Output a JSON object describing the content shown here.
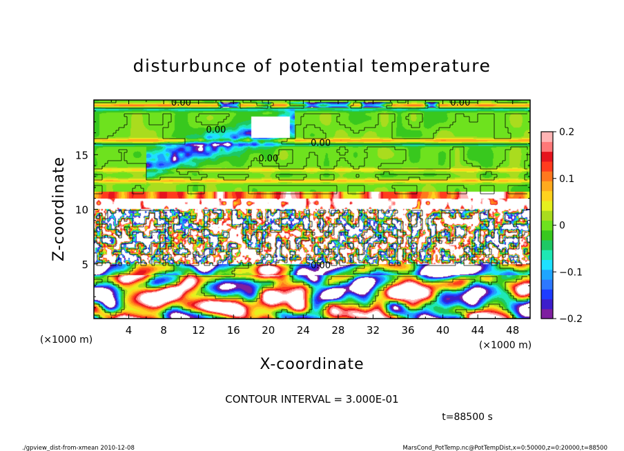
{
  "chart_data": {
    "type": "heatmap",
    "title": "disturbunce of potential temperature",
    "xlabel": "X-coordinate",
    "ylabel": "Z-coordinate",
    "x_units": "(×1000 m)",
    "y_units": "(×1000 m)",
    "xlim": [
      0,
      50
    ],
    "ylim": [
      0,
      20
    ],
    "x_ticks": [
      4,
      8,
      12,
      16,
      20,
      24,
      28,
      32,
      36,
      40,
      44,
      48
    ],
    "y_ticks": [
      5,
      10,
      15
    ],
    "colorbar": {
      "range": [
        -0.2,
        0.2
      ],
      "ticks": [
        "0.2",
        "0.1",
        "0",
        "−0.1",
        "−0.2"
      ],
      "tick_values": [
        0.2,
        0.1,
        0,
        -0.1,
        -0.2
      ],
      "colors": [
        "#7f1fa0",
        "#3c1ecc",
        "#1e3cff",
        "#2d78ff",
        "#1ea5ff",
        "#1ee1ff",
        "#1ee8b4",
        "#1ec864",
        "#38c81e",
        "#6ee21e",
        "#aadc1e",
        "#e6f01e",
        "#ffd21e",
        "#ffaa1e",
        "#ff781e",
        "#ff3c1e",
        "#e6141e",
        "#ff7878",
        "#ffb4b4"
      ]
    },
    "contour_labels": [
      "0.00",
      "0.00",
      "0.00",
      "0.00",
      "0.00",
      "0.00"
    ],
    "approx_fields": {
      "upper_layer_z": [
        11,
        20
      ],
      "upper_layer_value": 0.0,
      "cold_streak_x": [
        8,
        22
      ],
      "cold_streak_z": [
        14,
        18
      ],
      "mixed_band_z": [
        5,
        11
      ],
      "convective_cells_z": [
        0,
        5
      ]
    }
  },
  "annotations": {
    "contour_interval": "CONTOUR INTERVAL = 3.000E-01",
    "time": "t=88500 s"
  },
  "footer": {
    "left": "./gpview_dist-from-xmean  2010-12-08",
    "right": "MarsCond_PotTemp.nc@PotTempDist,x=0:50000,z=0:20000,t=88500"
  }
}
